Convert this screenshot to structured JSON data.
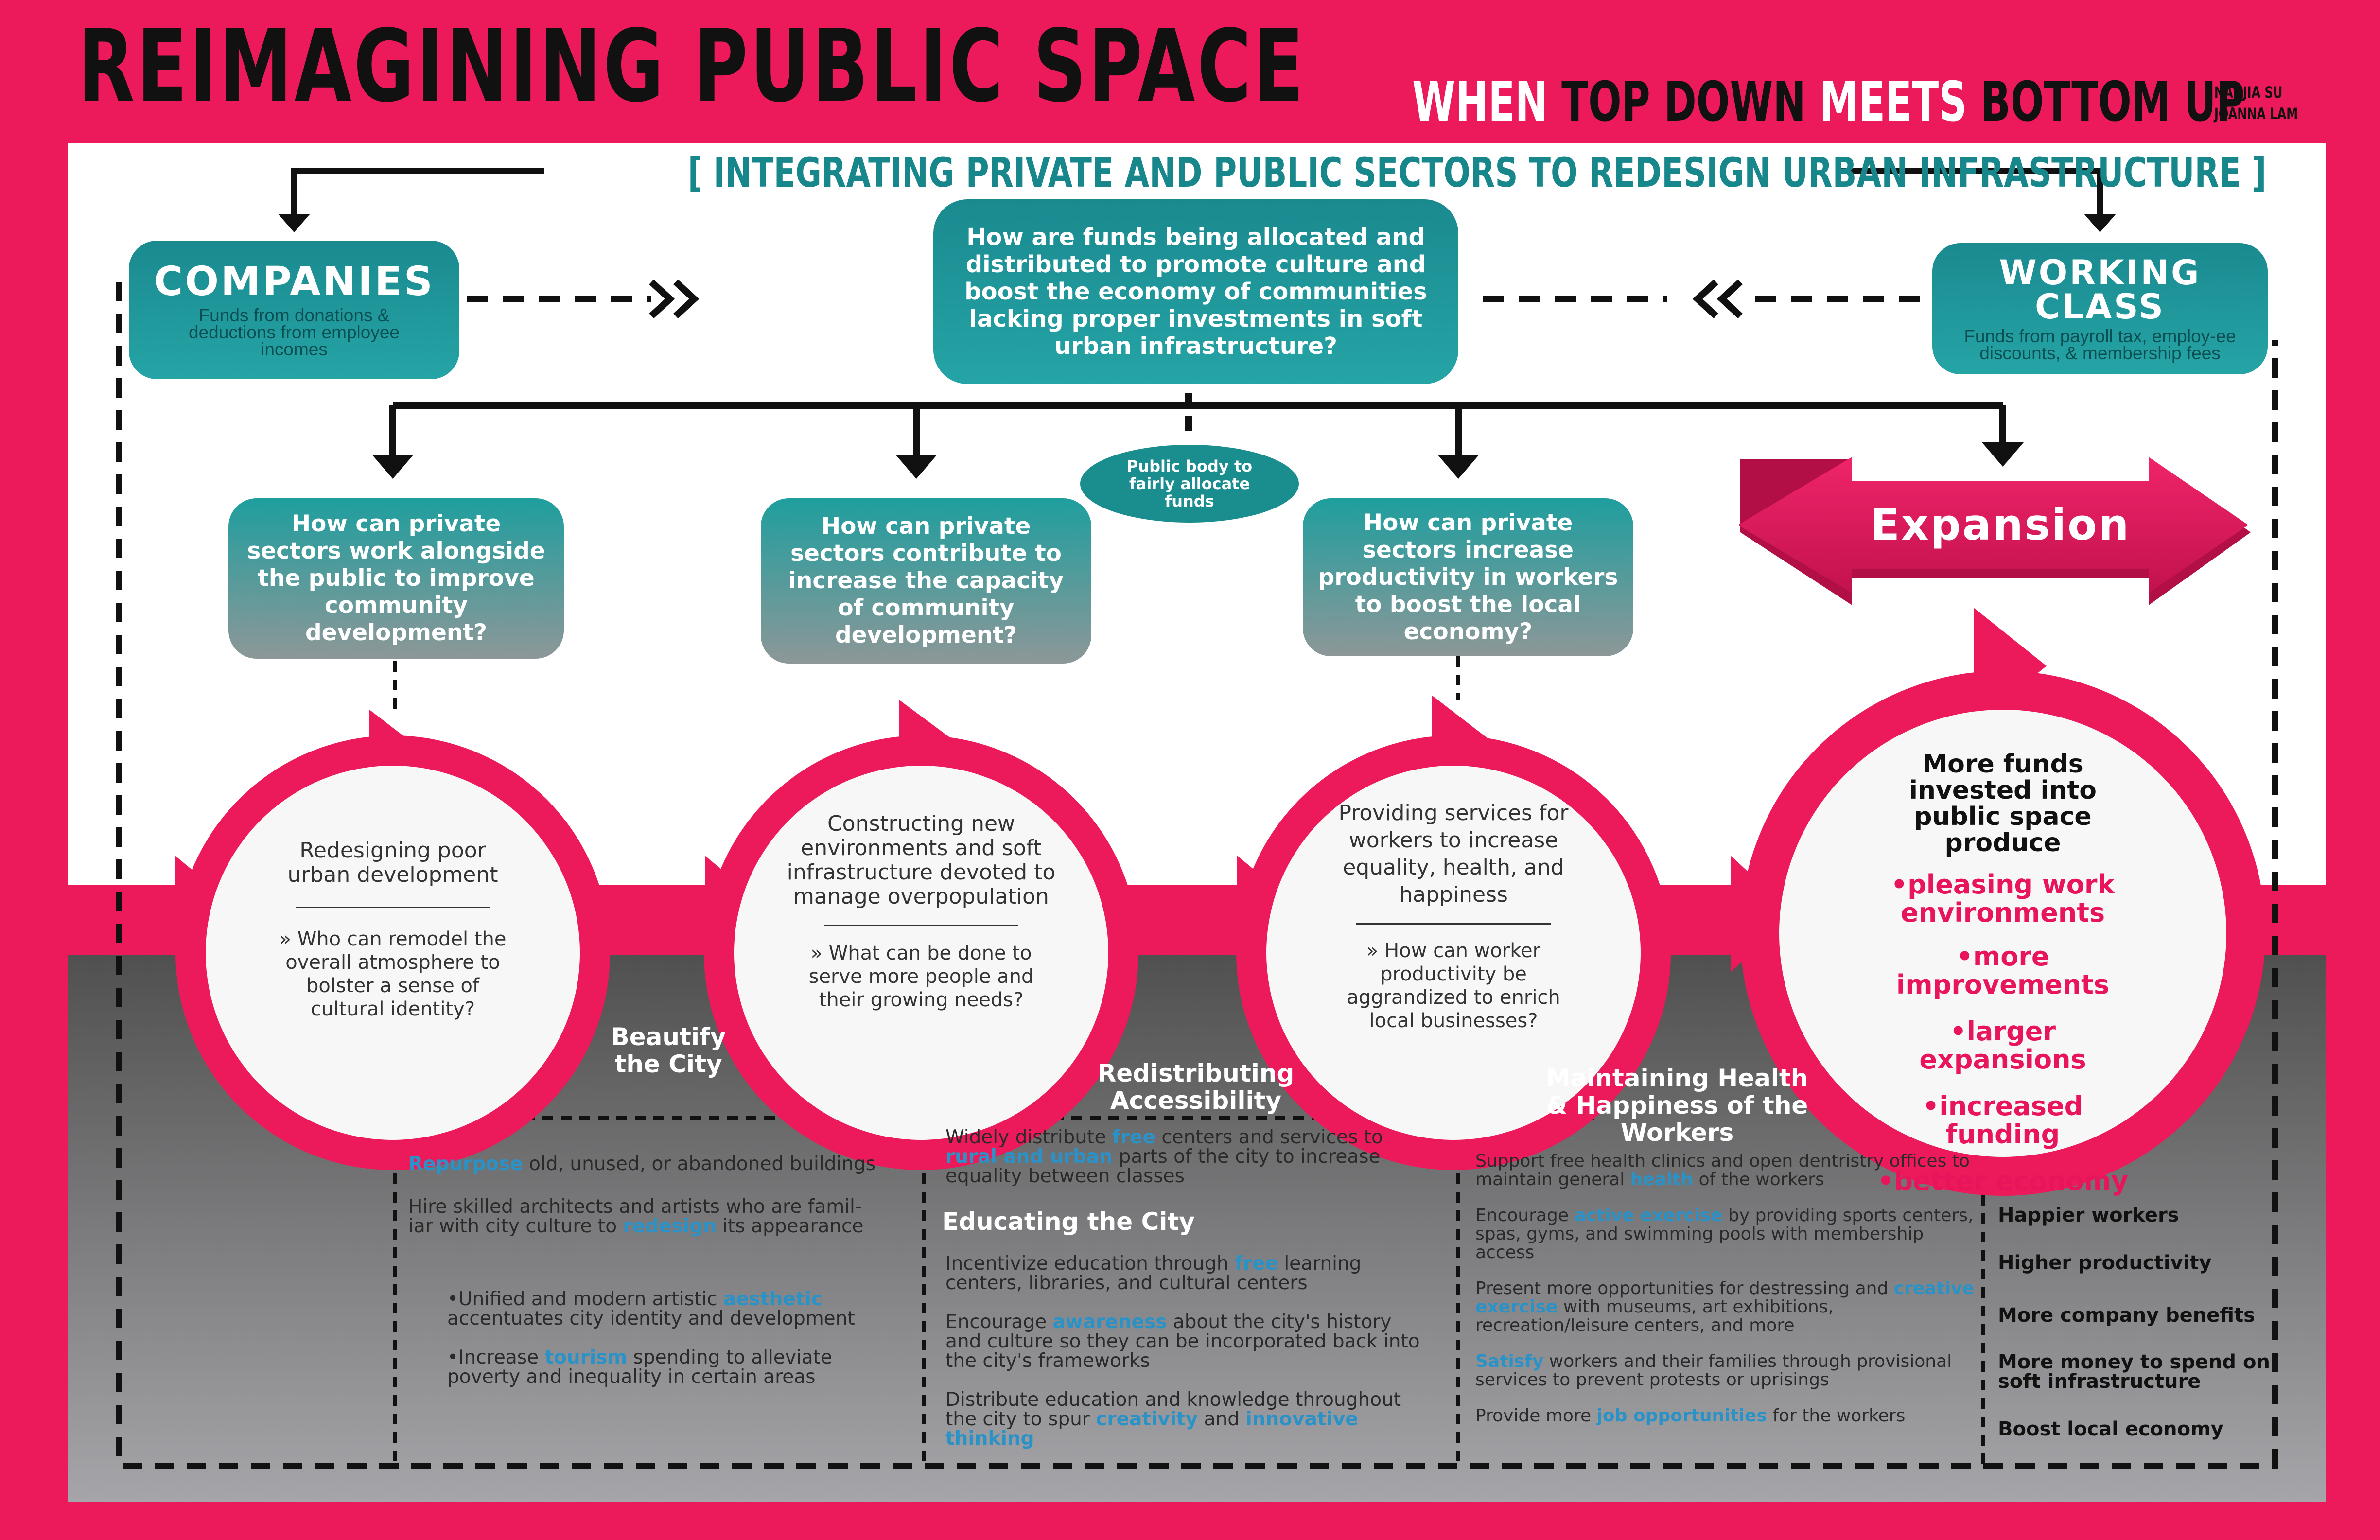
{
  "header": {
    "title": "REIMAGINING PUBLIC SPACE",
    "subtitle_1": "WHEN ",
    "subtitle_2": "TOP DOWN ",
    "subtitle_3": "MEETS ",
    "subtitle_4": "BOTTOM UP",
    "author_1": "NANJIA SU",
    "author_2": "JOANNA LAM",
    "tagline": "[ INTEGRATING PRIVATE AND PUBLIC SECTORS TO REDESIGN URBAN INFRASTRUCTURE ]"
  },
  "companies": {
    "title": "COMPANIES",
    "text": "Funds from donations & deductions from employee incomes"
  },
  "working_class": {
    "title_1": "WORKING",
    "title_2": "CLASS",
    "text": "Funds from payroll tax, employ-ee discounts, & membership fees"
  },
  "center_question": "How are funds being allocated and distributed to promote culture and boost the economy of communities lacking proper investments in soft urban infrastructure?",
  "public_body": "Public body to fairly allocate funds",
  "questions": [
    "How can private sectors work alongside the public to improve community development?",
    "How can private sectors contribute to increase the capacity of community development?",
    "How can private sectors increase productivity in workers to boost the local economy?"
  ],
  "expansion": "Expansion",
  "circles": [
    {
      "main": "Redesigning poor urban development",
      "question": "» Who can remodel the overall atmosphere to bolster a sense of cultural identity?"
    },
    {
      "main": "Constructing new environments and soft infrastructure devoted to manage overpopulation",
      "question": "» What can be done to serve more people and their growing needs?"
    },
    {
      "main": "Providing services for workers to increase equality, health, and happiness",
      "question": "» How can worker productivity be aggrandized to enrich local businesses?"
    }
  ],
  "final_circle": {
    "title": "More funds invested into public space produce",
    "bullets": [
      "•pleasing work environments",
      "•more improvements",
      "•larger expansions",
      "•increased funding",
      "•better economy"
    ]
  },
  "sections": {
    "beautify": {
      "title": "Beautify the City",
      "items": [
        {
          "parts": [
            {
              "t": "Repurpose",
              "h": true
            },
            {
              "t": " old, unused, or abandoned buildings"
            }
          ]
        },
        {
          "parts": [
            {
              "t": "Hire skilled architects and artists who are famil-iar with city culture to "
            },
            {
              "t": "redesign",
              "h": true
            },
            {
              "t": " its appearance"
            }
          ]
        },
        {
          "parts": [
            {
              "t": "•Unified and modern artistic "
            },
            {
              "t": "aesthetic",
              "h": true
            },
            {
              "t": " accentuates city identity and development"
            }
          ]
        },
        {
          "parts": [
            {
              "t": "•Increase "
            },
            {
              "t": "tourism",
              "h": true
            },
            {
              "t": " spending to alleviate poverty and inequality in certain areas"
            }
          ]
        }
      ]
    },
    "redistributing": {
      "title": "Redistributing Accessibility",
      "items": [
        {
          "parts": [
            {
              "t": "Widely distribute "
            },
            {
              "t": "free",
              "h": true
            },
            {
              "t": " centers and services to "
            },
            {
              "t": "rural and urban",
              "h": true
            },
            {
              "t": " parts of the city to increase equality between classes"
            }
          ]
        }
      ]
    },
    "educating": {
      "title": "Educating the City",
      "items": [
        {
          "parts": [
            {
              "t": "Incentivize education through "
            },
            {
              "t": "free",
              "h": true
            },
            {
              "t": " learning centers, libraries, and cultural centers"
            }
          ]
        },
        {
          "parts": [
            {
              "t": "Encourage "
            },
            {
              "t": "awareness",
              "h": true
            },
            {
              "t": " about the city's history and culture so they can be incorporated back into the city's frameworks"
            }
          ]
        },
        {
          "parts": [
            {
              "t": "Distribute education and knowledge throughout the city to spur "
            },
            {
              "t": "creativity",
              "h": true
            },
            {
              "t": " and "
            },
            {
              "t": "innovative thinking",
              "h": true
            }
          ]
        }
      ]
    },
    "health": {
      "title": "Maintaining Health & Happiness of the Workers",
      "items": [
        {
          "parts": [
            {
              "t": "Support free health clinics and open dentristry offices to maintain general "
            },
            {
              "t": "health",
              "h": true
            },
            {
              "t": " of the workers"
            }
          ]
        },
        {
          "parts": [
            {
              "t": "Encourage "
            },
            {
              "t": "active exercise",
              "h": true
            },
            {
              "t": " by providing sports centers, spas, gyms, and swimming pools with membership access"
            }
          ]
        },
        {
          "parts": [
            {
              "t": "Present more opportunities for destressing and "
            },
            {
              "t": "creative exercise",
              "h": true
            },
            {
              "t": " with museums, art exhibitions, recreation/leisure centers, and more"
            }
          ]
        },
        {
          "parts": [
            {
              "t": "Satisfy",
              "h": true
            },
            {
              "t": " workers and their families through provisional services to prevent protests or uprisings"
            }
          ]
        },
        {
          "parts": [
            {
              "t": "Provide more "
            },
            {
              "t": "job opportunities",
              "h": true
            },
            {
              "t": " for the workers"
            }
          ]
        }
      ]
    }
  },
  "results": [
    "Happier workers",
    "Higher productivity",
    "More company benefits",
    "More money to spend on soft infrastructure",
    "Boost local economy"
  ],
  "colors": {
    "pink": "#ec1a5a",
    "teal": "#1a8a8f",
    "grey_dark": "#555555",
    "grey_light": "#a0a0a4",
    "highlight": "#2a92c7"
  }
}
